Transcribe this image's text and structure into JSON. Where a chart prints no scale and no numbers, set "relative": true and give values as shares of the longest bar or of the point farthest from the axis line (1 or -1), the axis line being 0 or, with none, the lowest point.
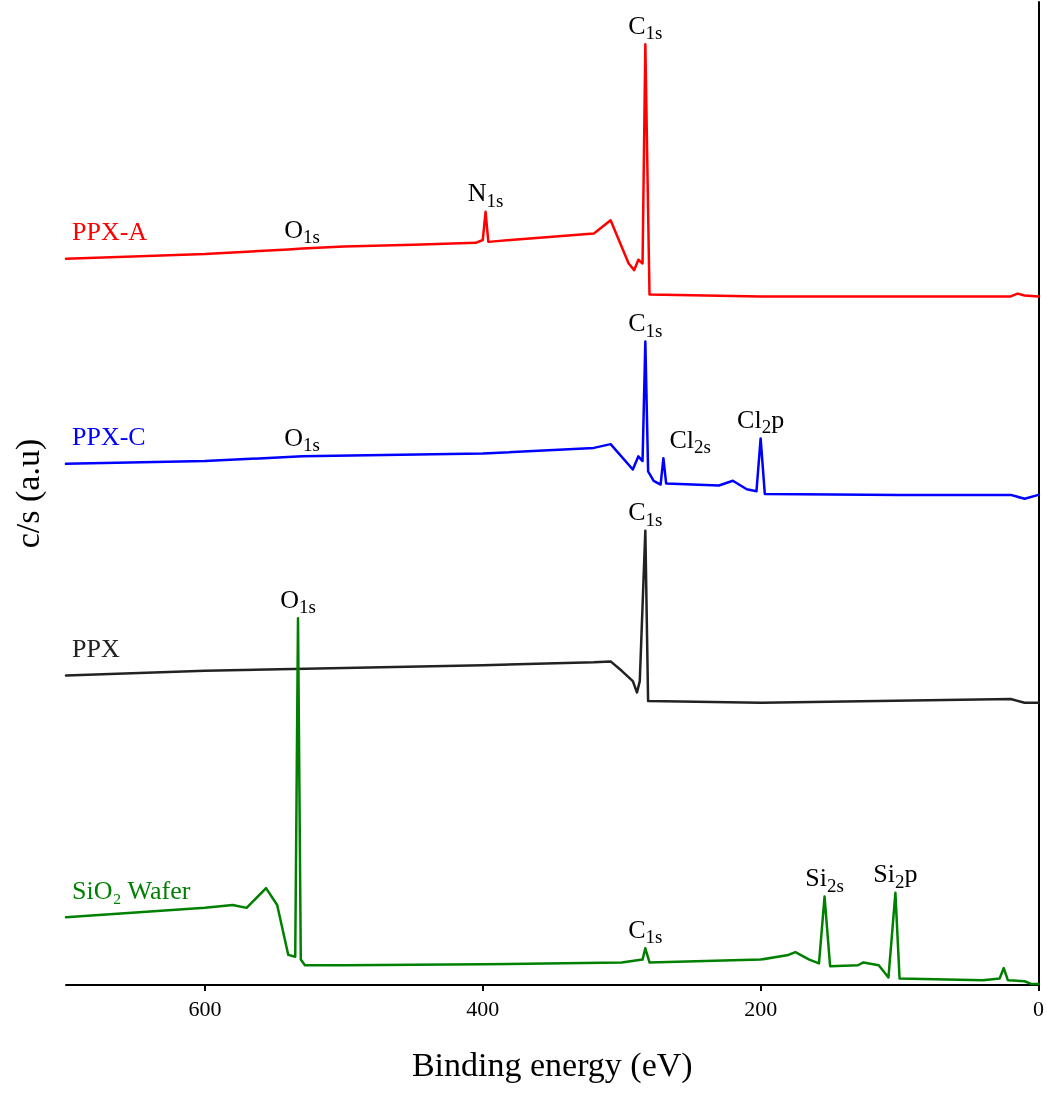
{
  "chart_data": {
    "type": "line",
    "relative": true,
    "xlabel": "Binding energy (eV)",
    "ylabel": "c/s (a.u)",
    "xlim": [
      700,
      0
    ],
    "xticks": [
      600,
      400,
      200,
      0
    ],
    "marker": "none",
    "line_style": "solid",
    "series": [
      {
        "name": "PPX-A",
        "color": "#ff0000",
        "x": [
          700,
          600,
          540,
          530,
          500,
          450,
          405,
          400,
          398,
          396,
          380,
          320,
          308,
          295,
          291,
          288,
          285,
          283,
          280,
          200,
          100,
          20,
          15,
          10,
          0
        ],
        "values": [
          0.772,
          0.777,
          0.782,
          0.783,
          0.785,
          0.787,
          0.789,
          0.792,
          0.822,
          0.79,
          0.792,
          0.799,
          0.813,
          0.767,
          0.76,
          0.771,
          0.767,
          1,
          0.734,
          0.732,
          0.732,
          0.732,
          0.735,
          0.733,
          0.732
        ]
      },
      {
        "name": "PPX-C",
        "color": "#0000ff",
        "x": [
          700,
          600,
          530,
          400,
          320,
          308,
          292,
          288,
          285,
          283,
          281,
          277,
          272,
          270,
          268,
          230,
          220,
          210,
          203,
          200,
          197,
          100,
          20,
          10,
          0
        ],
        "values": [
          0.554,
          0.557,
          0.562,
          0.565,
          0.571,
          0.575,
          0.548,
          0.562,
          0.557,
          0.684,
          0.546,
          0.536,
          0.532,
          0.56,
          0.533,
          0.531,
          0.536,
          0.527,
          0.525,
          0.581,
          0.522,
          0.521,
          0.521,
          0.517,
          0.521
        ]
      },
      {
        "name": "PPX",
        "color": "#222222",
        "x": [
          700,
          600,
          500,
          400,
          320,
          308,
          300,
          292,
          289,
          287,
          283,
          281,
          200,
          20,
          10,
          0
        ],
        "values": [
          0.329,
          0.334,
          0.337,
          0.34,
          0.343,
          0.344,
          0.334,
          0.323,
          0.311,
          0.323,
          0.483,
          0.302,
          0.3,
          0.304,
          0.3,
          0.3
        ]
      },
      {
        "name": "SiO₂ Wafer",
        "color": "#008000",
        "x": [
          700,
          650,
          600,
          580,
          570,
          556,
          548,
          540,
          535,
          533,
          531,
          528,
          500,
          400,
          300,
          285,
          283,
          280,
          200,
          180,
          175,
          165,
          158,
          154,
          150,
          130,
          126,
          115,
          108,
          103,
          100,
          40,
          28,
          25,
          22,
          10,
          5,
          0
        ],
        "values": [
          0.072,
          0.077,
          0.082,
          0.085,
          0.082,
          0.103,
          0.085,
          0.032,
          0.03,
          0.39,
          0.027,
          0.021,
          0.021,
          0.022,
          0.024,
          0.027,
          0.039,
          0.024,
          0.027,
          0.032,
          0.035,
          0.027,
          0.023,
          0.094,
          0.02,
          0.021,
          0.024,
          0.021,
          0.008,
          0.098,
          0.007,
          0.005,
          0.007,
          0.018,
          0.005,
          0.004,
          0.001,
          0.001
        ]
      }
    ],
    "annotations": [
      {
        "text": "O$_{1s}$",
        "x": 530,
        "y": 0.783
      },
      {
        "text": "N$_{1s}$",
        "x": 398,
        "y": 0.822
      },
      {
        "text": "C$_{1s}$",
        "x": 283,
        "y": 1
      },
      {
        "text": "O$_{1s}$",
        "x": 530,
        "y": 0.562
      },
      {
        "text": "C$_{1s}$",
        "x": 283,
        "y": 0.684
      },
      {
        "text": "Cl$_{2s}$",
        "x": 270,
        "y": 0.56
      },
      {
        "text": "Cl$_{2}$p",
        "x": 200,
        "y": 0.581
      },
      {
        "text": "C$_{1s}$",
        "x": 283,
        "y": 0.483
      },
      {
        "text": "O$_{1s}$",
        "x": 533,
        "y": 0.39
      },
      {
        "text": "C$_{1s}$",
        "x": 283,
        "y": 0.039
      },
      {
        "text": "Si$_{2s}$",
        "x": 154,
        "y": 0.094
      },
      {
        "text": "Si$_{2}$p",
        "x": 103,
        "y": 0.098
      }
    ]
  }
}
